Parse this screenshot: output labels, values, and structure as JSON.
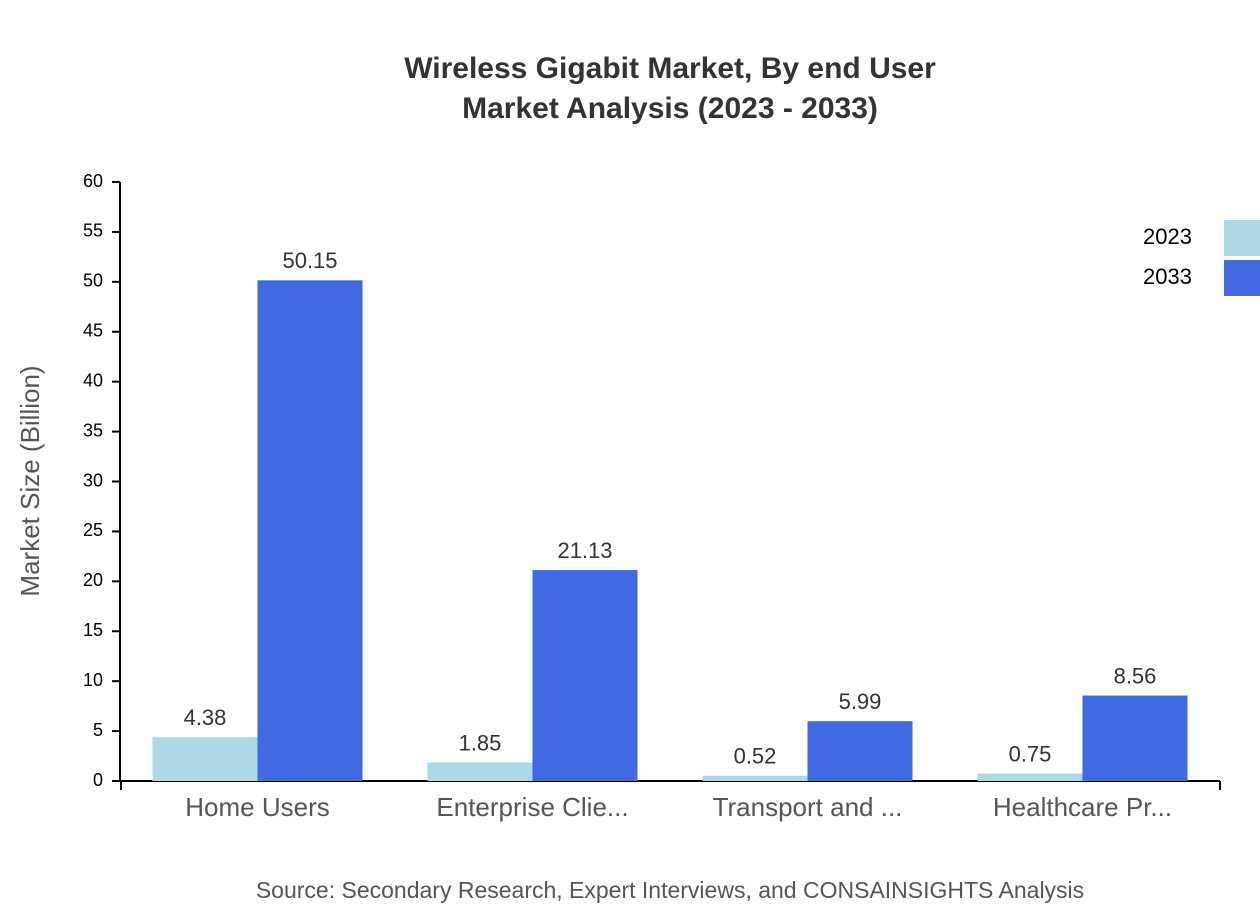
{
  "chart_data": {
    "type": "bar",
    "title": "Wireless Gigabit Market, By end User",
    "subtitle": "Market Analysis (2023 - 2033)",
    "y_label": "Market Size (Billion)",
    "source": "Source: Secondary Research, Expert Interviews, and CONSAINSIGHTS Analysis",
    "categories": [
      "Home Users",
      "Enterprise Clie...",
      "Transport and ...",
      "Healthcare Pr..."
    ],
    "series": [
      {
        "name": "2023",
        "color": "#add8e6",
        "values": [
          4.38,
          1.85,
          0.52,
          0.75
        ]
      },
      {
        "name": "2033",
        "color": "#4169e1",
        "values": [
          50.15,
          21.13,
          5.99,
          8.56
        ]
      }
    ],
    "ylim": [
      0,
      60
    ],
    "yticks": [
      0,
      5,
      10,
      15,
      20,
      25,
      30,
      35,
      40,
      45,
      50,
      55,
      60
    ],
    "legend": "top-right"
  }
}
